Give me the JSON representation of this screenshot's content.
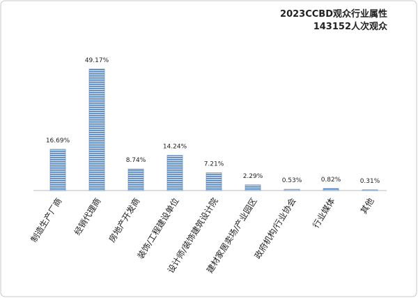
{
  "chart_data": {
    "type": "bar",
    "title": "2023CCBD观众行业属性",
    "subtitle": "143152人次观众",
    "categories": [
      "制造生产厂商",
      "经销代理商",
      "房地产开发商",
      "装饰/工程建设单位",
      "设计师/装饰建筑设计院",
      "建材家居卖场/产业园区",
      "政府机构/行业协会",
      "行业媒体",
      "其他"
    ],
    "values": [
      16.69,
      49.17,
      8.74,
      14.24,
      7.21,
      2.29,
      0.53,
      0.82,
      0.31
    ],
    "value_labels": [
      "16.69%",
      "49.17%",
      "8.74%",
      "14.24%",
      "7.21%",
      "2.29%",
      "0.53%",
      "0.82%",
      "0.31%"
    ],
    "color": "#4f81bd",
    "ylim": [
      0,
      50
    ]
  }
}
